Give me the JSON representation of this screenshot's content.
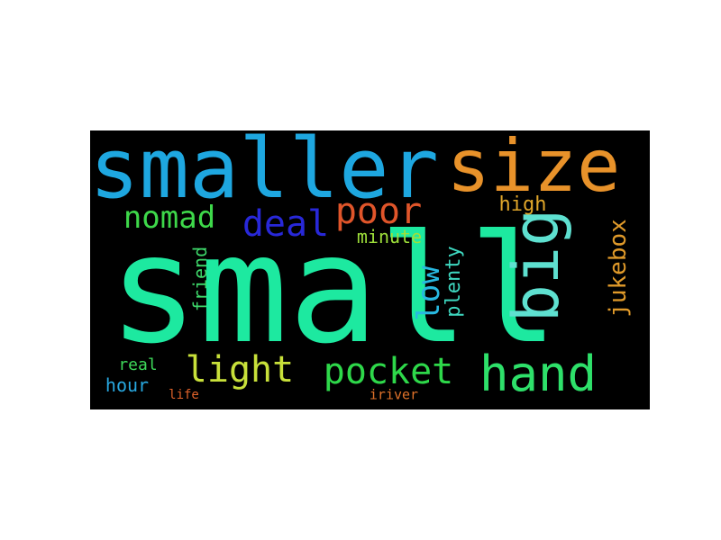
{
  "words": [
    {
      "text": "small",
      "color": "#1de9a0",
      "orientation": "horizontal"
    },
    {
      "text": "smaller",
      "color": "#1ea7e0",
      "orientation": "horizontal"
    },
    {
      "text": "size",
      "color": "#e8922a",
      "orientation": "horizontal"
    },
    {
      "text": "big",
      "color": "#5ee0d0",
      "orientation": "vertical"
    },
    {
      "text": "hand",
      "color": "#2ee06a",
      "orientation": "horizontal"
    },
    {
      "text": "pocket",
      "color": "#2ed84a",
      "orientation": "horizontal"
    },
    {
      "text": "light",
      "color": "#c8e03a",
      "orientation": "horizontal"
    },
    {
      "text": "deal",
      "color": "#2828d8",
      "orientation": "horizontal"
    },
    {
      "text": "poor",
      "color": "#e0552a",
      "orientation": "horizontal"
    },
    {
      "text": "nomad",
      "color": "#3ed84a",
      "orientation": "horizontal"
    },
    {
      "text": "low",
      "color": "#28b8e0",
      "orientation": "vertical"
    },
    {
      "text": "jukebox",
      "color": "#e09a2a",
      "orientation": "vertical"
    },
    {
      "text": "plenty",
      "color": "#3ed8c0",
      "orientation": "vertical"
    },
    {
      "text": "high",
      "color": "#e0a62a",
      "orientation": "horizontal"
    },
    {
      "text": "minute",
      "color": "#9ee03a",
      "orientation": "horizontal"
    },
    {
      "text": "friend",
      "color": "#3ed86a",
      "orientation": "vertical"
    },
    {
      "text": "real",
      "color": "#3ed85a",
      "orientation": "horizontal"
    },
    {
      "text": "hour",
      "color": "#28a8e0",
      "orientation": "horizontal"
    },
    {
      "text": "life",
      "color": "#e0622a",
      "orientation": "horizontal"
    },
    {
      "text": "iriver",
      "color": "#e0722a",
      "orientation": "horizontal"
    }
  ]
}
